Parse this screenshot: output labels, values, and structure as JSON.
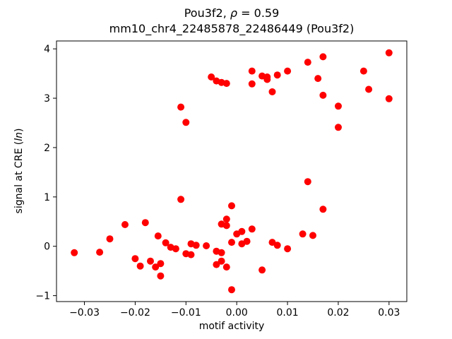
{
  "chart_data": {
    "type": "scatter",
    "title_line1_pre": "Pou3f2, ",
    "title_line1_italic": "ρ",
    "title_line1_post": " = 0.59",
    "title_line2": "mm10_chr4_22485878_22486449 (Pou3f2)",
    "xlabel": "motif activity",
    "ylabel_prefix": "signal at CRE (",
    "ylabel_italic": "ln",
    "ylabel_suffix": ")",
    "marker_color": "#ff0000",
    "legend": "none",
    "grid": false,
    "xlim": [
      -0.0355,
      0.0335
    ],
    "ylim": [
      -1.12,
      4.16
    ],
    "xticks": [
      -0.03,
      -0.02,
      -0.01,
      0.0,
      0.01,
      0.02,
      0.03
    ],
    "xtick_labels": [
      "−0.03",
      "−0.02",
      "−0.01",
      "0.00",
      "0.01",
      "0.02",
      "0.03"
    ],
    "yticks": [
      -1,
      0,
      1,
      2,
      3,
      4
    ],
    "ytick_labels": [
      "−1",
      "0",
      "1",
      "2",
      "3",
      "4"
    ],
    "points": [
      [
        -0.032,
        -0.13
      ],
      [
        -0.027,
        -0.12
      ],
      [
        -0.025,
        0.15
      ],
      [
        -0.022,
        0.44
      ],
      [
        -0.02,
        -0.25
      ],
      [
        -0.019,
        -0.4
      ],
      [
        -0.018,
        0.48
      ],
      [
        -0.017,
        -0.3
      ],
      [
        -0.016,
        -0.42
      ],
      [
        -0.0155,
        0.21
      ],
      [
        -0.015,
        -0.6
      ],
      [
        -0.015,
        -0.35
      ],
      [
        -0.014,
        0.07
      ],
      [
        -0.013,
        -0.02
      ],
      [
        -0.012,
        -0.05
      ],
      [
        -0.011,
        2.82
      ],
      [
        -0.011,
        0.95
      ],
      [
        -0.01,
        2.51
      ],
      [
        -0.01,
        -0.15
      ],
      [
        -0.009,
        -0.17
      ],
      [
        -0.009,
        0.05
      ],
      [
        -0.008,
        0.02
      ],
      [
        -0.006,
        0.01
      ],
      [
        -0.005,
        3.43
      ],
      [
        -0.004,
        3.35
      ],
      [
        -0.004,
        -0.1
      ],
      [
        -0.004,
        -0.37
      ],
      [
        -0.003,
        3.32
      ],
      [
        -0.003,
        0.45
      ],
      [
        -0.003,
        -0.13
      ],
      [
        -0.003,
        -0.3
      ],
      [
        -0.002,
        3.3
      ],
      [
        -0.002,
        0.55
      ],
      [
        -0.002,
        0.42
      ],
      [
        -0.002,
        -0.42
      ],
      [
        -0.001,
        0.82
      ],
      [
        -0.001,
        0.08
      ],
      [
        -0.001,
        -0.88
      ],
      [
        0.0,
        0.25
      ],
      [
        0.001,
        0.3
      ],
      [
        0.001,
        0.05
      ],
      [
        0.002,
        0.1
      ],
      [
        0.003,
        3.55
      ],
      [
        0.003,
        3.29
      ],
      [
        0.003,
        0.35
      ],
      [
        0.005,
        3.45
      ],
      [
        0.005,
        -0.48
      ],
      [
        0.006,
        3.43
      ],
      [
        0.006,
        3.38
      ],
      [
        0.007,
        3.13
      ],
      [
        0.007,
        0.08
      ],
      [
        0.008,
        3.47
      ],
      [
        0.008,
        0.02
      ],
      [
        0.01,
        3.55
      ],
      [
        0.01,
        -0.05
      ],
      [
        0.013,
        0.25
      ],
      [
        0.014,
        3.73
      ],
      [
        0.014,
        1.31
      ],
      [
        0.015,
        0.22
      ],
      [
        0.016,
        3.4
      ],
      [
        0.017,
        3.84
      ],
      [
        0.017,
        3.06
      ],
      [
        0.017,
        0.75
      ],
      [
        0.02,
        2.84
      ],
      [
        0.02,
        2.41
      ],
      [
        0.025,
        3.55
      ],
      [
        0.026,
        3.18
      ],
      [
        0.03,
        3.92
      ],
      [
        0.03,
        2.99
      ]
    ]
  }
}
